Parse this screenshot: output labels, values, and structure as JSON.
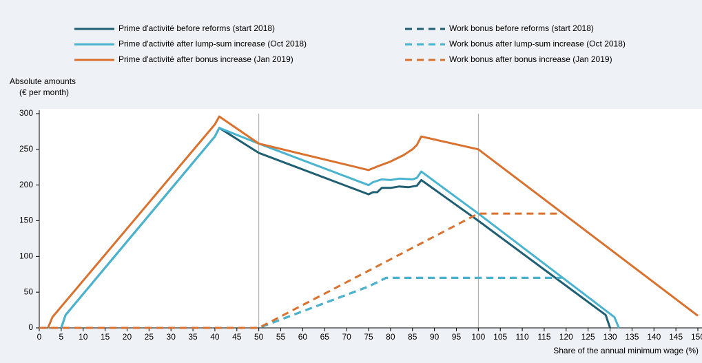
{
  "chart_data": {
    "type": "line",
    "ylabel": [
      "Absolute amounts",
      "(€ per month)"
    ],
    "xlabel": "Share of the annual minimum wage (%)",
    "xlim": [
      0,
      150
    ],
    "ylim": [
      0,
      300
    ],
    "xticks": [
      0,
      5,
      10,
      15,
      20,
      25,
      30,
      35,
      40,
      45,
      50,
      55,
      60,
      65,
      70,
      75,
      80,
      85,
      90,
      95,
      100,
      105,
      110,
      115,
      120,
      125,
      130,
      135,
      140,
      145,
      150
    ],
    "yticks": [
      0,
      50,
      100,
      150,
      200,
      250,
      300
    ],
    "vlines": [
      50,
      100
    ],
    "series": [
      {
        "name": "Prime d'activité before reforms (start 2018)",
        "color": "#1f5f73",
        "linestyle": "solid",
        "x": [
          5,
          6,
          40,
          41,
          50,
          75,
          76,
          77,
          78,
          80,
          82,
          84,
          86,
          87,
          100,
          118,
          129,
          130
        ],
        "values": [
          0,
          18,
          268,
          280,
          245,
          187,
          190,
          190,
          196,
          196,
          198,
          197,
          199,
          207,
          150,
          68,
          18,
          0
        ]
      },
      {
        "name": "Prime d'activité after lump-sum increase (Oct 2018)",
        "color": "#4ab4d0",
        "linestyle": "solid",
        "x": [
          5,
          6,
          40,
          41,
          50,
          75,
          76,
          78,
          80,
          82,
          85,
          86,
          87,
          100,
          131,
          132
        ],
        "values": [
          0,
          18,
          268,
          280,
          258,
          200,
          204,
          208,
          207,
          209,
          208,
          210,
          219,
          160,
          15,
          0
        ]
      },
      {
        "name": "Prime d'activité after bonus increase (Jan 2019)",
        "color": "#d9712f",
        "linestyle": "solid",
        "x": [
          2,
          3,
          40,
          41,
          50,
          75,
          77,
          80,
          83,
          85,
          86,
          87,
          100,
          150
        ],
        "values": [
          0,
          15,
          285,
          296,
          258,
          221,
          226,
          233,
          242,
          250,
          256,
          268,
          250,
          17
        ]
      },
      {
        "name": "Work bonus before reforms (start 2018)",
        "color": "#1f5f73",
        "linestyle": "dashed",
        "x": [
          0,
          50,
          75,
          79,
          118
        ],
        "values": [
          0,
          0,
          58,
          70,
          70
        ]
      },
      {
        "name": "Work bonus after lump-sum increase (Oct 2018)",
        "color": "#4ab4d0",
        "linestyle": "dashed",
        "x": [
          0,
          50,
          75,
          79,
          119
        ],
        "values": [
          0,
          0,
          58,
          70,
          70
        ]
      },
      {
        "name": "Work bonus after bonus increase (Jan 2019)",
        "color": "#d9712f",
        "linestyle": "dashed",
        "x": [
          0,
          50,
          100,
          119
        ],
        "values": [
          0,
          0,
          160,
          160
        ]
      }
    ]
  }
}
